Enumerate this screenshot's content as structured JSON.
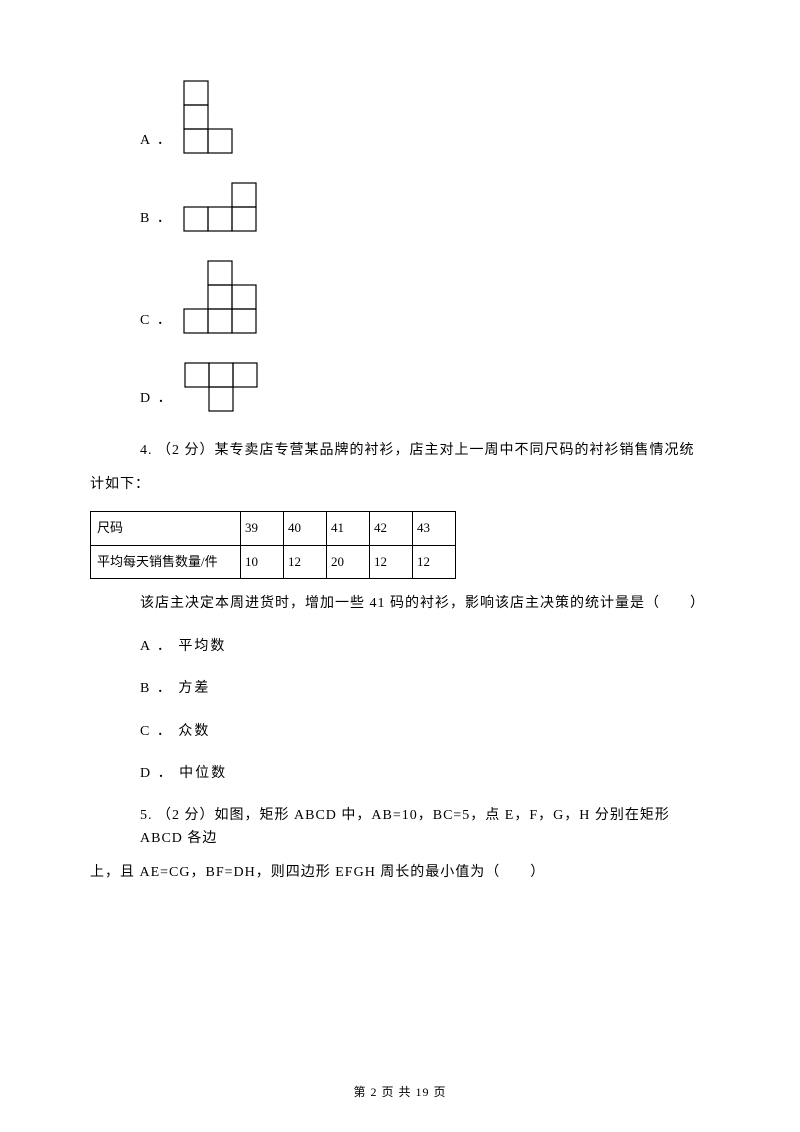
{
  "shapes": {
    "cell_size": 24,
    "stroke_color": "#000000",
    "stroke_width": 1.2,
    "A": {
      "label": "A ．",
      "cells": [
        [
          0,
          0
        ],
        [
          0,
          1
        ],
        [
          0,
          2
        ],
        [
          1,
          2
        ]
      ]
    },
    "B": {
      "label": "B ．",
      "cells": [
        [
          2,
          0
        ],
        [
          0,
          1
        ],
        [
          1,
          1
        ],
        [
          2,
          1
        ]
      ]
    },
    "C": {
      "label": "C ．",
      "cells": [
        [
          1,
          0
        ],
        [
          1,
          1
        ],
        [
          2,
          1
        ],
        [
          0,
          2
        ],
        [
          1,
          2
        ],
        [
          2,
          2
        ]
      ]
    },
    "D": {
      "label": "D ．",
      "cells": [
        [
          0,
          0
        ],
        [
          1,
          0
        ],
        [
          2,
          0
        ],
        [
          1,
          1
        ]
      ]
    }
  },
  "q4": {
    "intro_1": "4.  （2 分）某专卖店专营某品牌的衬衫，店主对上一周中不同尺码的衬衫销售情况统",
    "intro_2": "计如下：",
    "table": {
      "row1_label": "尺码",
      "row1_vals": [
        "39",
        "40",
        "41",
        "42",
        "43"
      ],
      "row2_label": "平均每天销售数量/件",
      "row2_vals": [
        "10",
        "12",
        "20",
        "12",
        "12"
      ]
    },
    "tail": "该店主决定本周进货时，增加一些 41 码的衬衫，影响该店主决策的统计量是（　　）",
    "opts": {
      "A": "A ． 平均数",
      "B": "B ． 方差",
      "C": "C ． 众数",
      "D": "D ． 中位数"
    }
  },
  "q5": {
    "line1": "5.  （2 分）如图，矩形 ABCD 中，AB=10，BC=5，点 E，F，G，H 分别在矩形 ABCD 各边",
    "line2": "上，且 AE=CG，BF=DH，则四边形 EFGH 周长的最小值为（　　）"
  },
  "footer": "第 2 页 共 19 页"
}
